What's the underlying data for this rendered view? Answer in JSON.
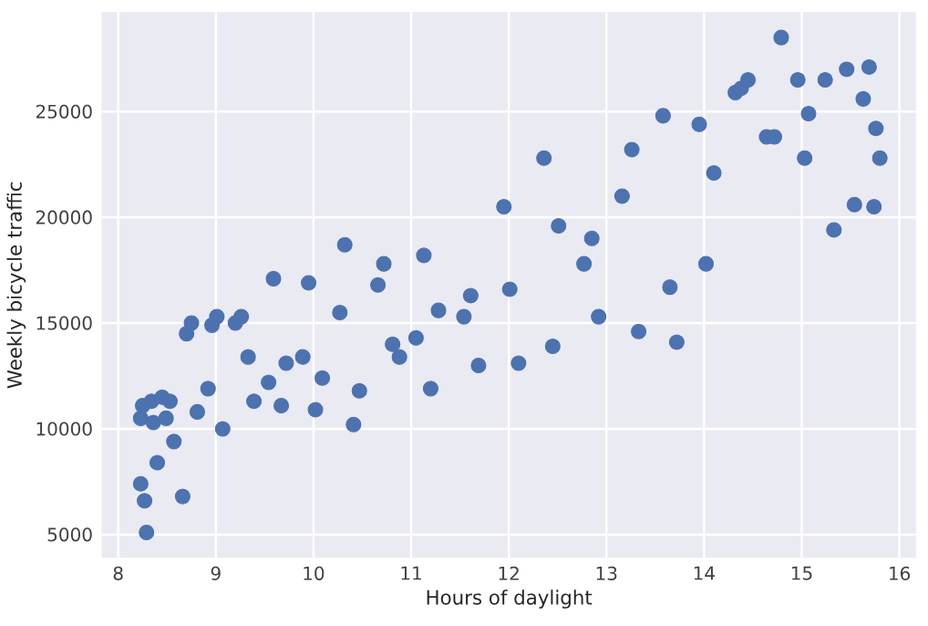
{
  "chart_data": {
    "type": "scatter",
    "xlabel": "Hours of daylight",
    "ylabel": "Weekly bicycle traffic",
    "x": [
      8.25,
      8.23,
      8.34,
      8.45,
      8.53,
      8.49,
      8.36,
      8.57,
      8.4,
      8.23,
      8.27,
      8.29,
      8.66,
      8.7,
      8.75,
      8.81,
      8.92,
      8.96,
      9.01,
      9.07,
      9.2,
      9.26,
      9.33,
      9.39,
      9.54,
      9.59,
      9.67,
      9.72,
      9.89,
      9.95,
      10.02,
      10.09,
      10.27,
      10.41,
      10.47,
      10.66,
      10.81,
      10.88,
      11.05,
      11.2,
      11.28,
      11.54,
      11.61,
      11.69,
      12.01,
      10.32,
      10.72,
      11.13,
      11.95,
      12.36,
      12.51,
      12.85,
      12.77,
      13.16,
      13.26,
      13.58,
      13.65,
      13.95,
      14.02,
      14.1,
      14.32,
      14.38,
      14.45,
      14.64,
      14.72,
      14.79,
      14.96,
      15.03,
      15.07,
      15.24,
      15.33,
      15.46,
      15.54,
      15.63,
      15.69,
      15.74,
      15.76,
      15.8,
      12.1,
      12.45,
      12.92,
      13.33,
      13.72
    ],
    "values": [
      11100,
      10500,
      11300,
      11500,
      11300,
      10500,
      10300,
      9400,
      8400,
      7400,
      6600,
      5100,
      6800,
      14500,
      15000,
      10800,
      11900,
      14900,
      15300,
      10000,
      15000,
      15300,
      13400,
      11300,
      12200,
      17100,
      11100,
      13100,
      13400,
      16900,
      10900,
      12400,
      15500,
      10200,
      11800,
      16800,
      14000,
      13400,
      14300,
      11900,
      15600,
      15300,
      16300,
      13000,
      16600,
      18700,
      17800,
      18200,
      20500,
      22800,
      19600,
      19000,
      17800,
      21000,
      23200,
      24800,
      16700,
      24400,
      17800,
      22100,
      25900,
      26100,
      26500,
      23800,
      23800,
      28500,
      26500,
      22800,
      24900,
      26500,
      19400,
      27000,
      20600,
      25600,
      27100,
      20500,
      24200,
      22800,
      13100,
      13900,
      15300,
      14600,
      14100
    ],
    "color": "#4c72b0",
    "marker": "circle",
    "xlim": [
      7.83,
      16.17
    ],
    "ylim": [
      3900,
      29700
    ],
    "xticks": [
      8,
      9,
      10,
      11,
      12,
      13,
      14,
      15,
      16
    ],
    "yticks": [
      5000,
      10000,
      15000,
      20000,
      25000
    ],
    "grid": true
  }
}
